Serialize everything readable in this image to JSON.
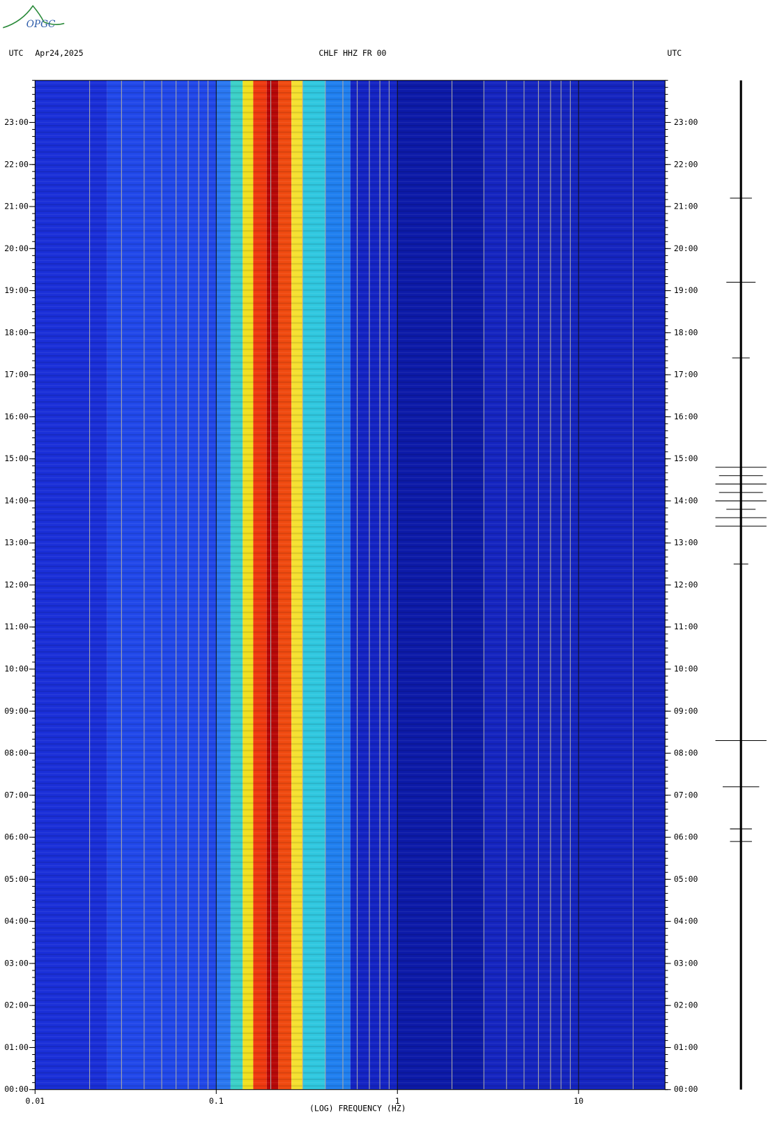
{
  "logo": "OPGC",
  "chart_data": {
    "type": "spectrogram",
    "timezone_left": "UTC",
    "date": "Apr24,2025",
    "station": "CHLF HHZ FR 00",
    "timezone_right": "UTC",
    "x_label": "(LOG) FREQUENCY (HZ)",
    "xscale": "log",
    "xlim": [
      0.01,
      30
    ],
    "xticks": [
      0.01,
      0.1,
      1,
      10
    ],
    "ylim": [
      0,
      24
    ],
    "yticks": [
      {
        "value": 0,
        "label": "00:00"
      },
      {
        "value": 1,
        "label": "01:00"
      },
      {
        "value": 2,
        "label": "02:00"
      },
      {
        "value": 3,
        "label": "03:00"
      },
      {
        "value": 4,
        "label": "04:00"
      },
      {
        "value": 5,
        "label": "05:00"
      },
      {
        "value": 6,
        "label": "06:00"
      },
      {
        "value": 7,
        "label": "07:00"
      },
      {
        "value": 8,
        "label": "08:00"
      },
      {
        "value": 9,
        "label": "09:00"
      },
      {
        "value": 10,
        "label": "10:00"
      },
      {
        "value": 11,
        "label": "11:00"
      },
      {
        "value": 12,
        "label": "12:00"
      },
      {
        "value": 13,
        "label": "13:00"
      },
      {
        "value": 14,
        "label": "14:00"
      },
      {
        "value": 15,
        "label": "15:00"
      },
      {
        "value": 16,
        "label": "16:00"
      },
      {
        "value": 17,
        "label": "17:00"
      },
      {
        "value": 18,
        "label": "18:00"
      },
      {
        "value": 19,
        "label": "19:00"
      },
      {
        "value": 20,
        "label": "20:00"
      },
      {
        "value": 21,
        "label": "21:00"
      },
      {
        "value": 22,
        "label": "22:00"
      },
      {
        "value": 23,
        "label": "23:00"
      }
    ],
    "minor_grid": true,
    "bands": [
      {
        "from": 0.01,
        "to": 0.025,
        "color": "#1a2fd8"
      },
      {
        "from": 0.025,
        "to": 0.1,
        "color": "#2148ea"
      },
      {
        "from": 0.1,
        "to": 0.12,
        "color": "#2a78f2"
      },
      {
        "from": 0.12,
        "to": 0.14,
        "color": "#3cd0c8"
      },
      {
        "from": 0.14,
        "to": 0.16,
        "color": "#f0e020"
      },
      {
        "from": 0.16,
        "to": 0.19,
        "color": "#f03a10"
      },
      {
        "from": 0.19,
        "to": 0.22,
        "color": "#b80808"
      },
      {
        "from": 0.22,
        "to": 0.26,
        "color": "#f04a10"
      },
      {
        "from": 0.26,
        "to": 0.3,
        "color": "#f5e030"
      },
      {
        "from": 0.3,
        "to": 0.4,
        "color": "#30c8e0"
      },
      {
        "from": 0.4,
        "to": 0.55,
        "color": "#2080f0"
      },
      {
        "from": 0.55,
        "to": 1,
        "color": "#1424c4"
      },
      {
        "from": 1,
        "to": 3,
        "color": "#0c1aa8"
      },
      {
        "from": 3,
        "to": 30,
        "color": "#1525c0"
      }
    ],
    "trace_events": [
      {
        "time": 21.2,
        "amplitude": 15
      },
      {
        "time": 19.2,
        "amplitude": 20
      },
      {
        "time": 17.4,
        "amplitude": 12
      },
      {
        "time": 14.8,
        "amplitude": 35
      },
      {
        "time": 14.6,
        "amplitude": 30
      },
      {
        "time": 14.4,
        "amplitude": 35
      },
      {
        "time": 14.2,
        "amplitude": 30
      },
      {
        "time": 14.0,
        "amplitude": 35
      },
      {
        "time": 13.8,
        "amplitude": 20
      },
      {
        "time": 13.6,
        "amplitude": 35
      },
      {
        "time": 13.4,
        "amplitude": 35
      },
      {
        "time": 12.5,
        "amplitude": 10
      },
      {
        "time": 8.3,
        "amplitude": 35
      },
      {
        "time": 7.2,
        "amplitude": 25
      },
      {
        "time": 6.2,
        "amplitude": 15
      },
      {
        "time": 5.9,
        "amplitude": 15
      }
    ]
  }
}
